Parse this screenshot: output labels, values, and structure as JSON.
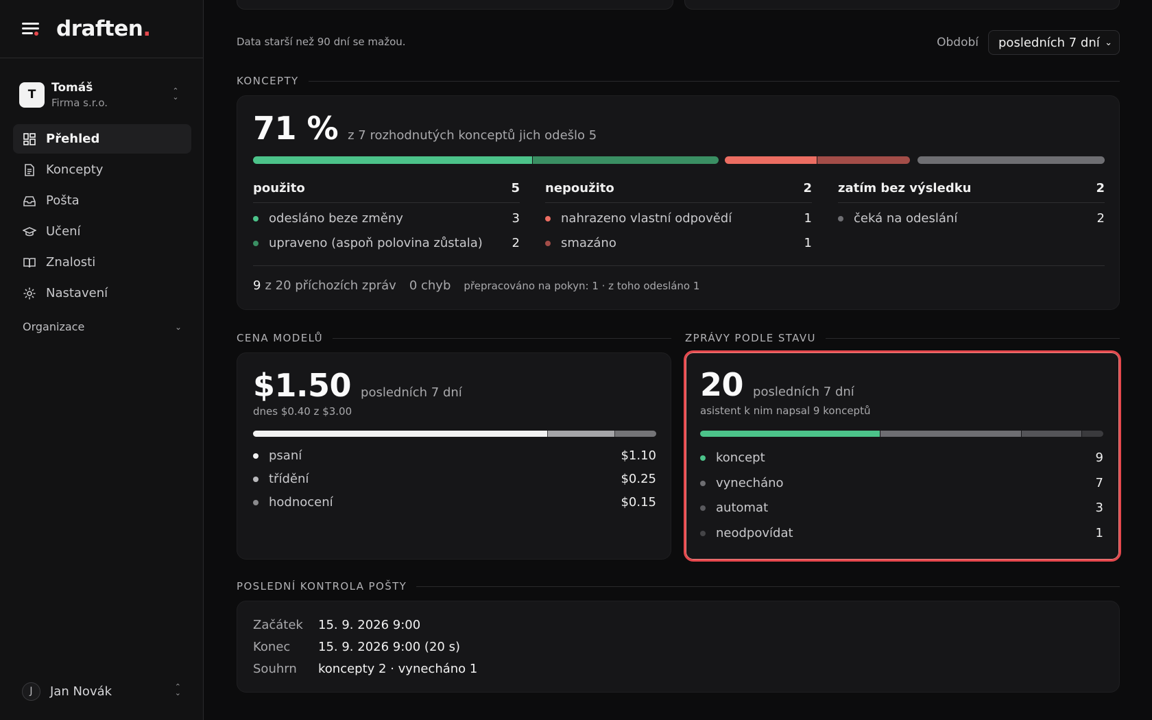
{
  "app": {
    "logo": "draften",
    "logo_dot": "."
  },
  "account": {
    "initial": "T",
    "name": "Tomáš",
    "company": "Firma s.r.o."
  },
  "nav": {
    "items": [
      {
        "label": "Přehled",
        "icon": "dashboard-icon",
        "active": true
      },
      {
        "label": "Koncepty",
        "icon": "document-icon"
      },
      {
        "label": "Pošta",
        "icon": "inbox-icon"
      },
      {
        "label": "Učení",
        "icon": "graduation-cap-icon"
      },
      {
        "label": "Znalosti",
        "icon": "book-icon"
      },
      {
        "label": "Nastavení",
        "icon": "gear-icon"
      }
    ],
    "org_label": "Organizace"
  },
  "user": {
    "initial": "J",
    "name": "Jan Novák"
  },
  "header": {
    "note": "Data starší než 90 dní se mažou.",
    "period_label": "Období",
    "period_value": "posledních 7 dní"
  },
  "concepts": {
    "title": "KONCEPTY",
    "percent": "71 %",
    "summary": "z 7 rozhodnutých konceptů jich odešlo 5",
    "used": {
      "label": "použito",
      "count": "5",
      "rows": [
        {
          "label": "odesláno beze změny",
          "value": "3",
          "color": "#4cc38a"
        },
        {
          "label": "upraveno (aspoň polovina zůstala)",
          "value": "2",
          "color": "#3a8f63"
        }
      ]
    },
    "unused": {
      "label": "nepoužito",
      "count": "2",
      "rows": [
        {
          "label": "nahrazeno vlastní odpovědí",
          "value": "1",
          "color": "#ec6d62"
        },
        {
          "label": "smazáno",
          "value": "1",
          "color": "#a34d48"
        }
      ]
    },
    "pending": {
      "label": "zatím bez výsledku",
      "count": "2",
      "rows": [
        {
          "label": "čeká na odeslání",
          "value": "2",
          "color": "#6e6e72"
        }
      ]
    },
    "footer": {
      "incoming_count": "9",
      "incoming_text": "z 20 příchozích zpráv",
      "errors": "0 chyb",
      "reworked": "přepracováno na pokyn: 1 · z toho odesláno 1"
    }
  },
  "cost": {
    "title": "CENA MODELŮ",
    "amount": "$1.50",
    "period": "posledních 7 dní",
    "today": "dnes $0.40 z $3.00",
    "rows": [
      {
        "label": "psaní",
        "value": "$1.10",
        "color": "#f2f2f2"
      },
      {
        "label": "třídění",
        "value": "$0.25",
        "color": "#b8b8bb"
      },
      {
        "label": "hodnocení",
        "value": "$0.15",
        "color": "#8a8a8d"
      }
    ]
  },
  "messages": {
    "title": "ZPRÁVY PODLE STAVU",
    "count": "20",
    "period": "posledních 7 dní",
    "sub": "asistent k nim napsal 9 konceptů",
    "rows": [
      {
        "label": "koncept",
        "value": "9",
        "color": "#4cc38a"
      },
      {
        "label": "vynecháno",
        "value": "7",
        "color": "#6e6e72"
      },
      {
        "label": "automat",
        "value": "3",
        "color": "#5a5a5e"
      },
      {
        "label": "neodpovídat",
        "value": "1",
        "color": "#444447"
      }
    ]
  },
  "last_check": {
    "title": "POSLEDNÍ KONTROLA POŠTY",
    "start_label": "Začátek",
    "start": "15. 9. 2026 9:00",
    "end_label": "Konec",
    "end": "15. 9. 2026 9:00 (20 s)",
    "summary_label": "Souhrn",
    "summary": "koncepty 2 · vynecháno 1"
  },
  "colors": {
    "accent": "#e5484d",
    "green": "#4cc38a",
    "highlight_border": "#e5484d"
  }
}
